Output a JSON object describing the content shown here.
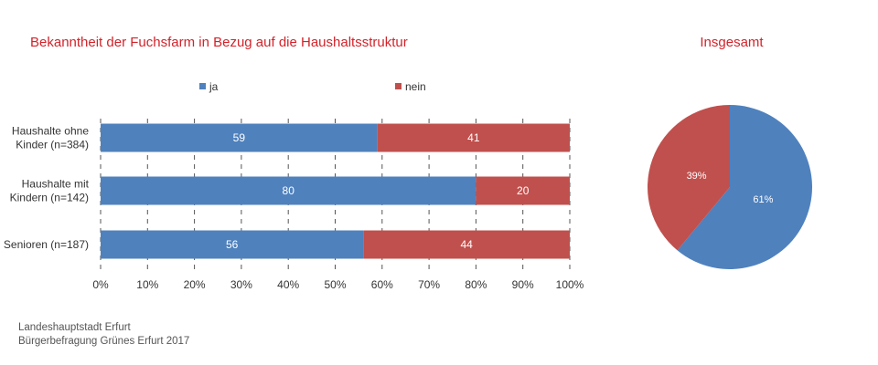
{
  "colors": {
    "ja": "#4f81bd",
    "nein": "#c0504d",
    "title": "#d2232a",
    "grid": "#555555"
  },
  "chart_data": [
    {
      "type": "bar",
      "orientation": "horizontal",
      "stacked": true,
      "title": "Bekanntheit der Fuchsfarm in Bezug auf die Haushaltsstruktur",
      "categories": [
        [
          "Haushalte ohne",
          "Kinder (n=384)"
        ],
        [
          "Haushalte mit",
          "Kindern (n=142)"
        ],
        [
          "Senioren (n=187)"
        ]
      ],
      "series": [
        {
          "name": "ja",
          "values": [
            59,
            80,
            56
          ]
        },
        {
          "name": "nein",
          "values": [
            41,
            20,
            44
          ]
        }
      ],
      "xlim": [
        0,
        100
      ],
      "xticks": [
        "0%",
        "10%",
        "20%",
        "30%",
        "40%",
        "50%",
        "60%",
        "70%",
        "80%",
        "90%",
        "100%"
      ],
      "grid": "vertical dashed",
      "legend": "top"
    },
    {
      "type": "pie",
      "title": "Insgesamt",
      "slices": [
        {
          "name": "ja",
          "value": 61,
          "label": "61%"
        },
        {
          "name": "nein",
          "value": 39,
          "label": "39%"
        }
      ]
    }
  ],
  "source": {
    "line1": "Landeshauptstadt Erfurt",
    "line2": "Bürgerbefragung Grünes Erfurt 2017"
  }
}
